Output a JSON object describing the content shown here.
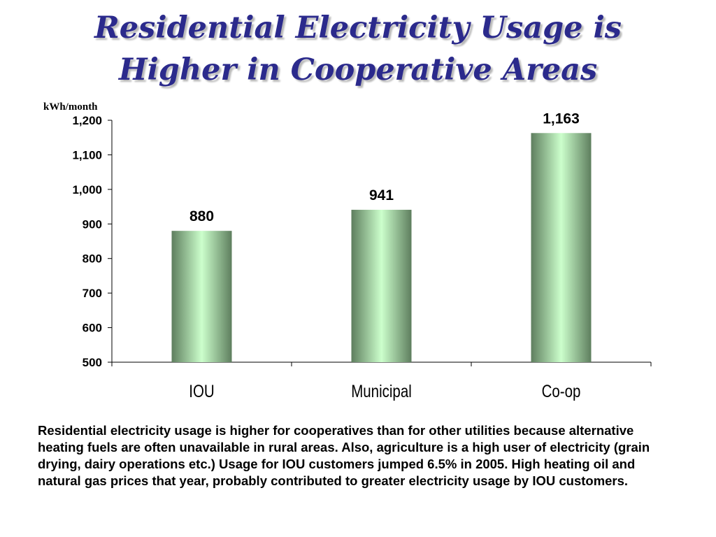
{
  "title": {
    "line1": "Residential Electricity Usage is",
    "line2": "Higher in Cooperative Areas"
  },
  "caption": "Residential electricity usage is higher for cooperatives than for other utilities because alternative heating fuels are often unavailable in rural areas.  Also, agriculture is a high user of electricity (grain drying, dairy operations etc.)  Usage for IOU customers jumped 6.5% in 2005.  High heating oil and natural gas prices that year, probably contributed to greater electricity usage by IOU customers.",
  "chart_data": {
    "type": "bar",
    "ylabel": "kWh/month",
    "xlabel": "",
    "categories": [
      "IOU",
      "Municipal",
      "Co-op"
    ],
    "values": [
      880,
      941,
      1163
    ],
    "data_labels": [
      "880",
      "941",
      "1,163"
    ],
    "ylim": [
      500,
      1200
    ],
    "yticks": [
      500,
      600,
      700,
      800,
      900,
      1000,
      1100,
      1200
    ],
    "ytick_labels": [
      "500",
      "600",
      "700",
      "800",
      "900",
      "1,000",
      "1,100",
      "1,200"
    ],
    "grid": false,
    "legend": "none",
    "bar_color_light": "#ccffcc",
    "bar_color_dark": "#5e7e5e"
  }
}
